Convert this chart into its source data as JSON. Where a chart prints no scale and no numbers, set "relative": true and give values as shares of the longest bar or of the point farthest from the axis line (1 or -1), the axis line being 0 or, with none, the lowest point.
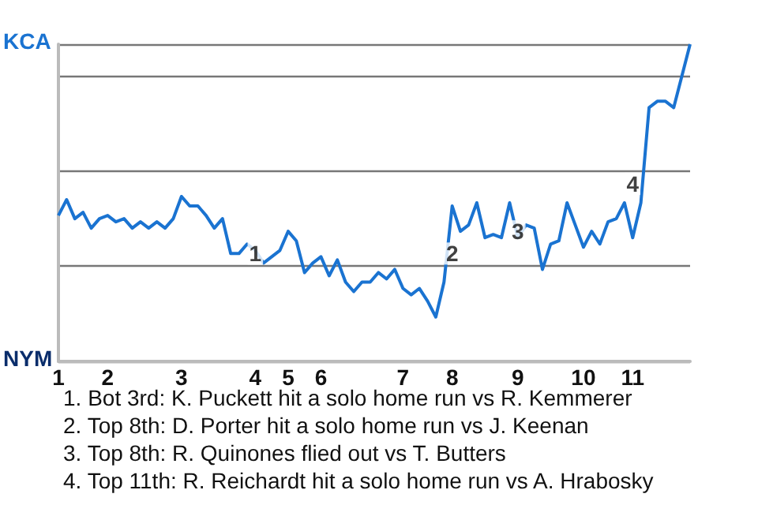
{
  "chart_data": {
    "type": "line",
    "relative": true,
    "categories": [
      "1",
      null,
      null,
      null,
      null,
      null,
      "2",
      null,
      null,
      null,
      null,
      null,
      null,
      null,
      null,
      "3",
      null,
      null,
      null,
      null,
      null,
      null,
      null,
      null,
      "4",
      null,
      null,
      null,
      "5",
      null,
      null,
      null,
      "6",
      null,
      null,
      null,
      null,
      null,
      null,
      null,
      null,
      null,
      "7",
      null,
      null,
      null,
      null,
      null,
      "8",
      null,
      null,
      null,
      null,
      null,
      null,
      null,
      "9",
      null,
      null,
      null,
      null,
      null,
      null,
      null,
      "10",
      null,
      null,
      null,
      null,
      null,
      "11",
      null,
      null,
      null,
      null,
      null,
      null,
      null
    ],
    "series": [
      {
        "color": "#1a73d1",
        "values": [
          0.46,
          0.51,
          0.45,
          0.47,
          0.42,
          0.45,
          0.46,
          0.44,
          0.45,
          0.42,
          0.44,
          0.42,
          0.44,
          0.42,
          0.45,
          0.52,
          0.49,
          0.49,
          0.46,
          0.42,
          0.45,
          0.34,
          0.34,
          0.37,
          0.35,
          0.31,
          0.33,
          0.35,
          0.41,
          0.38,
          0.28,
          0.31,
          0.33,
          0.27,
          0.32,
          0.25,
          0.22,
          0.25,
          0.25,
          0.28,
          0.26,
          0.29,
          0.23,
          0.21,
          0.23,
          0.19,
          0.14,
          0.25,
          0.49,
          0.41,
          0.43,
          0.5,
          0.39,
          0.4,
          0.39,
          0.5,
          0.39,
          0.43,
          0.42,
          0.29,
          0.37,
          0.38,
          0.5,
          0.43,
          0.36,
          0.41,
          0.37,
          0.44,
          0.45,
          0.5,
          0.39,
          0.5,
          0.8,
          0.82,
          0.82,
          0.8,
          0.9,
          1
        ]
      }
    ],
    "grid": "y",
    "marker": "none",
    "annotations": [
      {
        "text": "1",
        "x": "4",
        "y": 0.34
      },
      {
        "text": "2",
        "x": "8",
        "y": 0.34
      },
      {
        "text": "3",
        "x": "9",
        "y": 0.41
      },
      {
        "text": "4",
        "x": "11",
        "y": 0.56
      },
      "KCA",
      "NYM",
      "1. Bot 3rd: K. Puckett hit a solo home run vs R. Kemmerer",
      "2. Top 8th: D. Porter hit a solo home run vs J. Keenan",
      "3. Top 8th: R. Quinones flied out vs T. Butters",
      "4. Top 11th: R. Reichardt hit a solo home run vs A. Hrabosky"
    ]
  }
}
